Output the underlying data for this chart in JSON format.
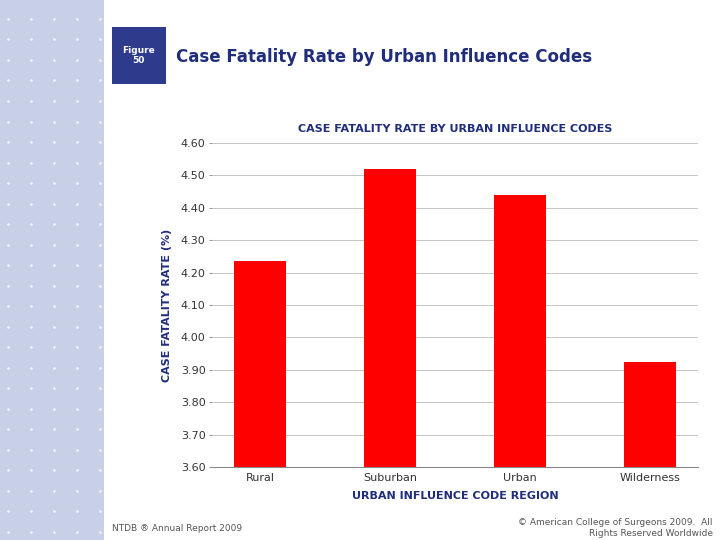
{
  "categories": [
    "Rural",
    "Suburban",
    "Urban",
    "Wilderness"
  ],
  "values": [
    4.235,
    4.52,
    4.44,
    3.925
  ],
  "bar_color": "#FF0000",
  "chart_title": "CASE FATALITY RATE BY URBAN INFLUENCE CODES",
  "main_title": "Case Fatality Rate by Urban Influence Codes",
  "figure_label": "Figure\n50",
  "xlabel": "URBAN INFLUENCE CODE REGION",
  "ylabel": "CASE FATALITY RATE (%)",
  "ylim": [
    3.6,
    4.6
  ],
  "yticks": [
    3.6,
    3.7,
    3.8,
    3.9,
    4.0,
    4.1,
    4.2,
    4.3,
    4.4,
    4.5,
    4.6
  ],
  "footer_left": "NTDB ® Annual Report 2009",
  "footer_right": "© American College of Surgeons 2009.  All\nRights Reserved Worldwide",
  "title_color": "#1F2D7B",
  "axis_label_color": "#1F2D7B",
  "tick_label_color": "#333333",
  "chart_title_color": "#1F2D7B",
  "figure_box_color": "#2E3A8C",
  "background_color": "#FFFFFF",
  "dot_panel_color": "#C8D0E8",
  "grid_color": "#BBBBBB"
}
